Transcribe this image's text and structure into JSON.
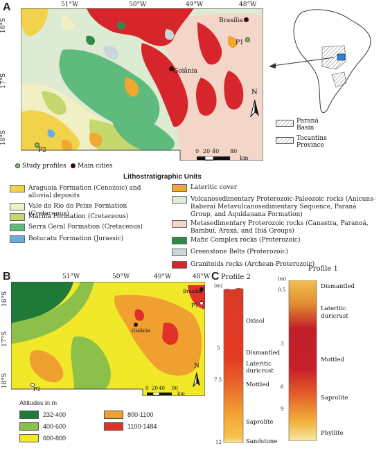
{
  "panel_a": {
    "letter": "A",
    "lon_labels": [
      "51°W",
      "50°W",
      "49°W",
      "48°W"
    ],
    "lat_labels": [
      "16°S",
      "17°S",
      "18°S"
    ],
    "cities": [
      "Brasília",
      "Goiânia"
    ],
    "profiles": [
      "P1",
      "P2"
    ],
    "north": "N",
    "scale_ticks": [
      "0",
      "20",
      "40",
      "80"
    ],
    "scale_unit": "km",
    "inset": {
      "legend": [
        {
          "label": "Paraná Basin"
        },
        {
          "label": "Tocantins Province"
        }
      ]
    },
    "marker_legend": [
      "Study profiles",
      "Main cities"
    ]
  },
  "litho": {
    "title": "Lithostratigraphic Units",
    "left": [
      {
        "label": "Araguaia Formation (Cenozoic) and alluvial deposits",
        "color": "#f2d24a"
      },
      {
        "label": "Vale do Rio do Peixe Formation (Cretaceous)",
        "color": "#f1efc4"
      },
      {
        "label": "Marília Formation (Cretaceous)",
        "color": "#c4d86e"
      },
      {
        "label": "Serra Geral Formation (Cretaceous)",
        "color": "#5fba7d"
      },
      {
        "label": "Botucatu Formation (Jurassic)",
        "color": "#6aaee0"
      }
    ],
    "right": [
      {
        "label": "Lateritic cover",
        "color": "#f0a830"
      },
      {
        "label": "Volcanosedimentary Proterozoic-Paleozoic rocks (Anicuns-Itaberaí Metavulcanosedimentary Sequence, Paraná Group, and Aquidauana Formation)",
        "color": "#dcebd2"
      },
      {
        "label": "Metasedimentary Proterozoic rocks (Canastra, Paranoá, Bambuí, Araxá, and Ibiá Groups)",
        "color": "#f4d6c8"
      },
      {
        "label": "Mafic Complex rocks (Proterozoic)",
        "color": "#2f8a4a"
      },
      {
        "label": "Greenstone Belts (Proterozoic)",
        "color": "#c9d7dc"
      },
      {
        "label": "Granitoids rocks (Archean-Proterozoic)",
        "color": "#d7262b"
      }
    ]
  },
  "panel_b": {
    "letter": "B",
    "lon_labels": [
      "51°W",
      "50°W",
      "49°W",
      "48°W"
    ],
    "lat_labels": [
      "16°S",
      "17°S",
      "18°S"
    ],
    "cities": [
      "Brasília",
      "Goiânia"
    ],
    "profiles": [
      "P1",
      "P2"
    ],
    "north": "N",
    "scale_ticks": [
      "0",
      "20",
      "40",
      "80"
    ],
    "scale_unit": "km",
    "altitude_title": "Altitudes in m",
    "altitude_classes": [
      {
        "label": "232-400",
        "color": "#1f7a3a"
      },
      {
        "label": "400-600",
        "color": "#8cc04a"
      },
      {
        "label": "600-800",
        "color": "#f2e82a"
      },
      {
        "label": "800-1100",
        "color": "#f0a030"
      },
      {
        "label": "1100-1484",
        "color": "#e0302a"
      }
    ]
  },
  "panel_c": {
    "letter": "C",
    "profile2": {
      "title": "Profile 2",
      "unit": "(m)",
      "depths": [
        "5",
        "7.5",
        "12"
      ],
      "horizons": [
        "Oxisol",
        "Dismantled",
        "Lateritic duricrust",
        "Mottled",
        "Saprolite",
        "Sandstone"
      ]
    },
    "profile1": {
      "title": "Profile 1",
      "unit": "(m)",
      "depths": [
        "0.5",
        "3",
        "6",
        "9"
      ],
      "horizons": [
        "Dismantled",
        "Lateritic duricrust",
        "Mottled",
        "Saprolite",
        "Phyllite"
      ]
    }
  }
}
